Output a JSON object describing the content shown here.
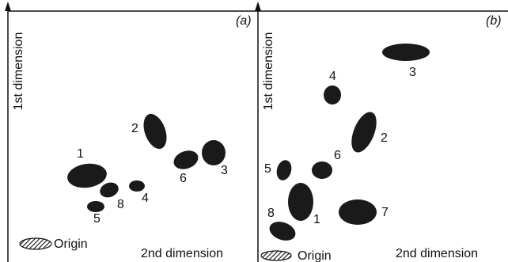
{
  "panels": [
    {
      "label": "(a)",
      "y_axis": "1st dimension",
      "x_axis": "2nd dimension",
      "origin": "Origin",
      "spots": [
        "1",
        "2",
        "6",
        "3",
        "4",
        "8",
        "5"
      ]
    },
    {
      "label": "(b)",
      "y_axis": "1st dimension",
      "x_axis": "2nd dimension",
      "origin": "Origin",
      "spots": [
        "3",
        "4",
        "2",
        "6",
        "5",
        "1",
        "7",
        "8"
      ]
    }
  ]
}
